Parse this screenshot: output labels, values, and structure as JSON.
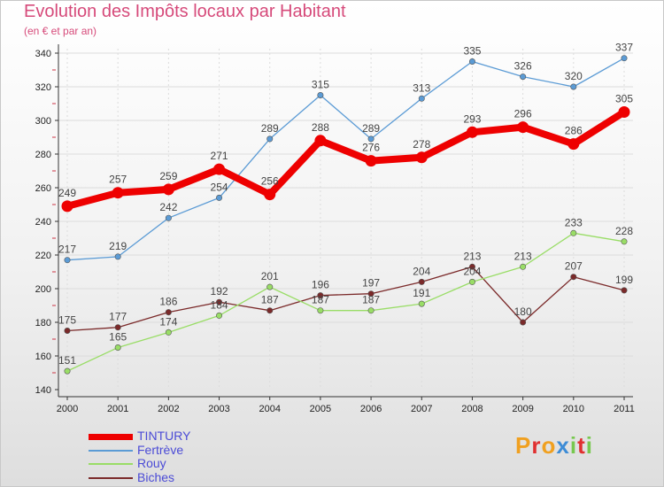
{
  "header": {
    "title": "Evolution des Impôts locaux par Habitant",
    "subtitle": "(en € et par an)"
  },
  "logo": {
    "text": "Proxiti",
    "colors": [
      "#f0a020",
      "#e03030",
      "#3d8cd6",
      "#78c850"
    ]
  },
  "chart_data": {
    "type": "line",
    "x": [
      2000,
      2001,
      2002,
      2003,
      2004,
      2005,
      2006,
      2007,
      2008,
      2009,
      2010,
      2011
    ],
    "ylim": [
      140,
      340
    ],
    "yticks": [
      140,
      160,
      180,
      200,
      220,
      240,
      260,
      280,
      300,
      320,
      340
    ],
    "grid": true,
    "legend_placement": "bottom-left",
    "series": [
      {
        "name": "TINTURY",
        "color": "#ee0000",
        "values": [
          249,
          257,
          259,
          271,
          256,
          288,
          276,
          278,
          293,
          296,
          286,
          305
        ]
      },
      {
        "name": "Fertrève",
        "color": "#5b9bd5",
        "values": [
          217,
          219,
          242,
          254,
          289,
          315,
          289,
          313,
          335,
          326,
          320,
          337
        ]
      },
      {
        "name": "Rouy",
        "color": "#99dd66",
        "values": [
          151,
          165,
          174,
          184,
          201,
          187,
          187,
          191,
          204,
          213,
          233,
          228
        ]
      },
      {
        "name": "Biches",
        "color": "#7b2a2a",
        "values": [
          175,
          177,
          186,
          192,
          187,
          196,
          197,
          204,
          213,
          180,
          207,
          199
        ]
      }
    ]
  }
}
